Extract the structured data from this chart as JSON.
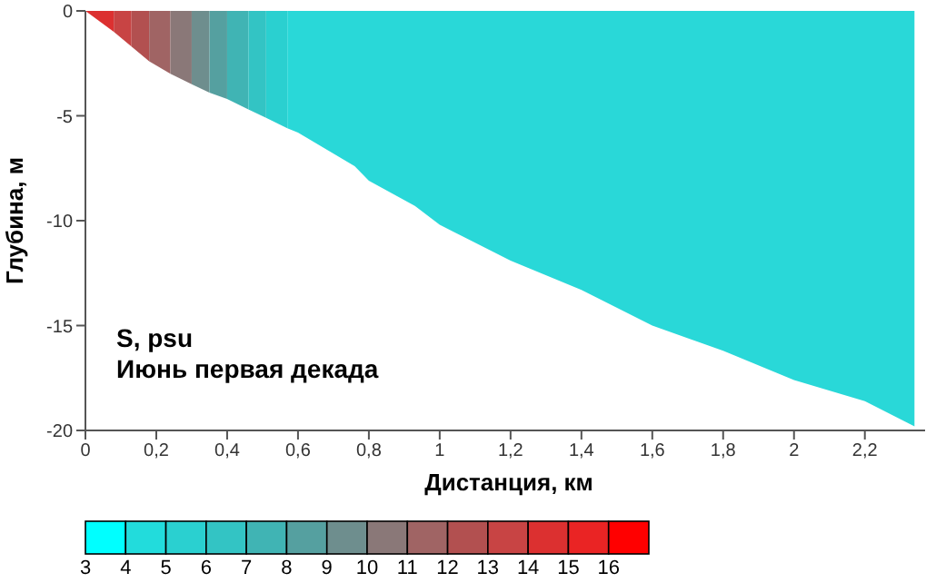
{
  "chart_data": {
    "type": "area",
    "xlabel": "Дистанция, км",
    "ylabel": "Глубина, м",
    "annotations": [
      "S, psu",
      "Июнь первая декада"
    ],
    "xlim": [
      0,
      2.37
    ],
    "xticks": [
      0,
      {
        "value": 0.2,
        "label": "0,2"
      },
      {
        "value": 0.4,
        "label": "0,4"
      },
      {
        "value": 0.6,
        "label": "0,6"
      },
      {
        "value": 0.8,
        "label": "0,8"
      },
      1,
      {
        "value": 1.2,
        "label": "1,2"
      },
      {
        "value": 1.4,
        "label": "1,4"
      },
      {
        "value": 1.6,
        "label": "1,6"
      },
      {
        "value": 1.8,
        "label": "1,8"
      },
      2,
      {
        "value": 2.2,
        "label": "2,2"
      }
    ],
    "ylim": [
      -20,
      0
    ],
    "yticks": [
      0,
      -5,
      -10,
      -15,
      -20
    ],
    "grid": false,
    "legend": false,
    "clim": [
      3,
      17
    ],
    "cticks": [
      3,
      4,
      5,
      6,
      7,
      8,
      9,
      10,
      11,
      12,
      13,
      14,
      15,
      16
    ],
    "colors": [
      "#00ffff",
      "#22dcdc",
      "#2ad0d0",
      "#33c4c4",
      "#40b4b4",
      "#55a0a0",
      "#6e8e8e",
      "#8a7878",
      "#a06464",
      "#b25050",
      "#c84444",
      "#dc3030",
      "#ea2424",
      "#ff0000"
    ],
    "series": [
      {
        "color": "#dc3030",
        "x": [
          0,
          0.08
        ],
        "values": [
          0,
          -1.0
        ]
      },
      {
        "color": "#c84444",
        "x": [
          0.08,
          0.13
        ],
        "values": [
          -1.0,
          -1.7
        ]
      },
      {
        "color": "#b25050",
        "x": [
          0.13,
          0.18
        ],
        "values": [
          -1.7,
          -2.4
        ]
      },
      {
        "color": "#a06464",
        "x": [
          0.18,
          0.24
        ],
        "values": [
          -2.4,
          -3.0
        ]
      },
      {
        "color": "#8a7878",
        "x": [
          0.24,
          0.3
        ],
        "values": [
          -3.0,
          -3.5
        ]
      },
      {
        "color": "#6e8e8e",
        "x": [
          0.3,
          0.35
        ],
        "values": [
          -3.5,
          -3.9
        ]
      },
      {
        "color": "#55a0a0",
        "x": [
          0.35,
          0.4
        ],
        "values": [
          -3.9,
          -4.2
        ]
      },
      {
        "color": "#40b4b4",
        "x": [
          0.4,
          0.46
        ],
        "values": [
          -4.2,
          -4.7
        ]
      },
      {
        "color": "#33c4c4",
        "x": [
          0.46,
          0.51
        ],
        "values": [
          -4.7,
          -5.1
        ]
      },
      {
        "color": "#2ad0d0",
        "x": [
          0.51,
          0.57
        ],
        "values": [
          -5.1,
          -5.6
        ]
      },
      {
        "color": "#29d8d8",
        "x": [
          0.57,
          0.6,
          0.76,
          0.8,
          0.93,
          1.0,
          1.2,
          1.4,
          1.6,
          1.8,
          2.0,
          2.2,
          2.34
        ],
        "values": [
          -5.6,
          -5.8,
          -7.4,
          -8.1,
          -9.3,
          -10.2,
          -11.9,
          -13.3,
          -15.0,
          -16.2,
          -17.6,
          -18.6,
          -19.8
        ]
      }
    ]
  }
}
